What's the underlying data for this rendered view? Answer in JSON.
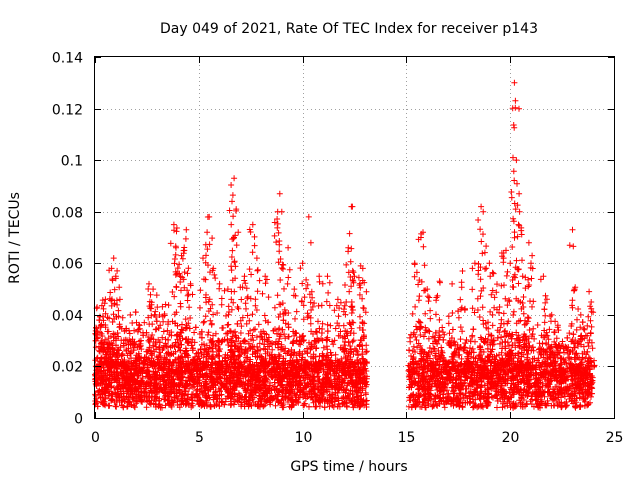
{
  "chart_data": {
    "type": "scatter",
    "title": "Day 049 of 2021, Rate Of TEC Index for receiver p143",
    "xlabel": "GPS time / hours",
    "ylabel": "ROTI / TECUs",
    "xlim": [
      0,
      25
    ],
    "ylim": [
      0,
      0.14
    ],
    "xticks": [
      0,
      5,
      10,
      15,
      20,
      25
    ],
    "yticks": [
      0,
      0.02,
      0.04,
      0.06,
      0.08,
      0.1,
      0.12,
      0.14
    ],
    "xtick_labels": [
      "0",
      "5",
      "10",
      "15",
      "20",
      "25"
    ],
    "ytick_labels": [
      "0",
      "0.02",
      "0.04",
      "0.06",
      "0.08",
      "0.1",
      "0.12",
      "0.14"
    ],
    "grid": true,
    "marker": "+",
    "color": "#ff0000",
    "data_gap_hours": [
      13.1,
      15.1
    ],
    "series": [
      {
        "name": "ROTI",
        "points": [
          [
            0.1,
            0.043
          ],
          [
            0.2,
            0.038
          ],
          [
            0.3,
            0.036
          ],
          [
            0.5,
            0.046
          ],
          [
            0.6,
            0.039
          ],
          [
            0.8,
            0.058
          ],
          [
            0.9,
            0.062
          ],
          [
            1.0,
            0.055
          ],
          [
            1.2,
            0.046
          ],
          [
            1.5,
            0.034
          ],
          [
            1.7,
            0.04
          ],
          [
            2.0,
            0.037
          ],
          [
            2.2,
            0.028
          ],
          [
            2.6,
            0.052
          ],
          [
            2.8,
            0.05
          ],
          [
            3.0,
            0.043
          ],
          [
            3.4,
            0.044
          ],
          [
            3.8,
            0.075
          ],
          [
            3.9,
            0.066
          ],
          [
            4.0,
            0.056
          ],
          [
            4.3,
            0.065
          ],
          [
            4.4,
            0.073
          ],
          [
            4.6,
            0.052
          ],
          [
            5.2,
            0.062
          ],
          [
            5.4,
            0.072
          ],
          [
            5.5,
            0.078
          ],
          [
            5.7,
            0.058
          ],
          [
            6.0,
            0.052
          ],
          [
            6.4,
            0.05
          ],
          [
            6.6,
            0.084
          ],
          [
            6.7,
            0.093
          ],
          [
            6.8,
            0.081
          ],
          [
            6.9,
            0.072
          ],
          [
            7.2,
            0.055
          ],
          [
            7.6,
            0.075
          ],
          [
            7.8,
            0.062
          ],
          [
            8.2,
            0.055
          ],
          [
            8.8,
            0.08
          ],
          [
            8.9,
            0.087
          ],
          [
            9.0,
            0.08
          ],
          [
            9.3,
            0.066
          ],
          [
            9.6,
            0.05
          ],
          [
            10.0,
            0.06
          ],
          [
            10.3,
            0.078
          ],
          [
            10.4,
            0.068
          ],
          [
            10.8,
            0.055
          ],
          [
            11.2,
            0.055
          ],
          [
            11.7,
            0.046
          ],
          [
            12.1,
            0.045
          ],
          [
            12.2,
            0.066
          ],
          [
            12.4,
            0.082
          ],
          [
            12.5,
            0.055
          ],
          [
            12.8,
            0.059
          ],
          [
            12.9,
            0.058
          ],
          [
            15.4,
            0.06
          ],
          [
            15.7,
            0.07
          ],
          [
            15.8,
            0.072
          ],
          [
            16.0,
            0.05
          ],
          [
            16.6,
            0.053
          ],
          [
            17.2,
            0.052
          ],
          [
            17.7,
            0.057
          ],
          [
            18.3,
            0.06
          ],
          [
            18.6,
            0.082
          ],
          [
            18.7,
            0.08
          ],
          [
            19.0,
            0.06
          ],
          [
            19.2,
            0.056
          ],
          [
            19.6,
            0.064
          ],
          [
            19.8,
            0.065
          ],
          [
            20.0,
            0.06
          ],
          [
            20.2,
            0.13
          ],
          [
            20.25,
            0.123
          ],
          [
            20.3,
            0.1
          ],
          [
            20.4,
            0.075
          ],
          [
            20.6,
            0.055
          ],
          [
            20.9,
            0.068
          ],
          [
            21.0,
            0.06
          ],
          [
            21.6,
            0.055
          ],
          [
            22.0,
            0.04
          ],
          [
            22.3,
            0.036
          ],
          [
            23.0,
            0.073
          ],
          [
            23.1,
            0.05
          ],
          [
            23.4,
            0.04
          ],
          [
            23.8,
            0.049
          ],
          [
            23.9,
            0.045
          ]
        ]
      }
    ]
  }
}
